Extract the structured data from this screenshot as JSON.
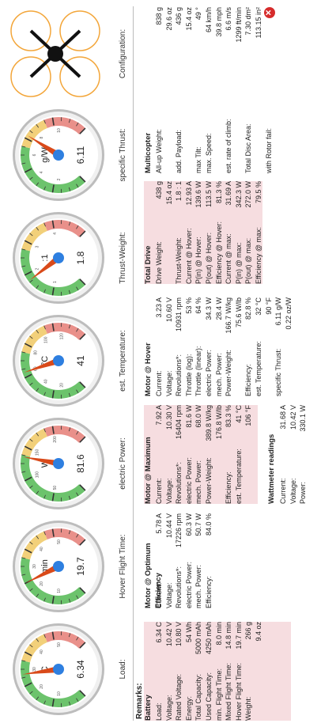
{
  "gauges": [
    {
      "unit": "C",
      "value": "6.34",
      "label": "Load:",
      "reading": 6.34,
      "needle_frac": 0.47,
      "scale": [
        "10",
        "20",
        "30",
        "40",
        "50"
      ]
    },
    {
      "unit": "min",
      "value": "19.7",
      "label": "Hover Flight Time:",
      "reading": 19.7,
      "needle_frac": 0.4,
      "scale": [
        "10",
        "20",
        "30",
        "40",
        "50"
      ]
    },
    {
      "unit": "W",
      "value": "81.6",
      "label": "electric Power:",
      "reading": 81.6,
      "needle_frac": 0.54,
      "scale": [
        "50",
        "100",
        "150",
        "200"
      ]
    },
    {
      "unit": "°C",
      "value": "41",
      "label": "est. Temperature:",
      "reading": 41,
      "needle_frac": 0.43,
      "scale": [
        "20",
        "40",
        "60",
        "80",
        "100",
        "120"
      ]
    },
    {
      "unit": ":1",
      "value": "1.8",
      "label": "Thrust-Weight:",
      "reading": 1.8,
      "needle_frac": 0.36,
      "scale": [
        "1",
        "2",
        "3",
        "4"
      ]
    },
    {
      "unit": "g/W",
      "value": "6.11",
      "label": "specific Thrust:",
      "reading": 6.11,
      "needle_frac": 0.62,
      "scale": [
        "2",
        "4",
        "6",
        "8",
        "10"
      ]
    }
  ],
  "configuration": {
    "label": "Configuration:"
  },
  "remarks": "Remarks:",
  "battery": {
    "title": "Battery",
    "rows": [
      {
        "k": "Load:",
        "v": "6.34 C"
      },
      {
        "k": "Voltage:",
        "v": "10.42 V"
      },
      {
        "k": "Rated Voltage:",
        "v": "10.80 V"
      },
      {
        "k": "Energy:",
        "v": "54 Wh"
      },
      {
        "k": "Total Capacity:",
        "v": "5000 mAh"
      },
      {
        "k": "Used Capacity:",
        "v": "4250 mAh"
      },
      {
        "k": "min. Flight Time:",
        "v": "8.0 min"
      },
      {
        "k": "Mixed Flight Time:",
        "v": "14.8 min"
      },
      {
        "k": "Hover Flight Time:",
        "v": "19.7 min"
      },
      {
        "k": "Weight:",
        "v": "266 g"
      },
      {
        "k": "",
        "v": "9.4 oz"
      }
    ]
  },
  "motor_opt": {
    "title": "Motor @ Optimum Efficiency",
    "rows": [
      {
        "k": "Current:",
        "v": "5.78 A"
      },
      {
        "k": "Voltage:",
        "v": "10.44 V"
      },
      {
        "k": "Revolutions*:",
        "v": "17226 rpm"
      },
      {
        "k": "electric Power:",
        "v": "60.3 W"
      },
      {
        "k": "mech. Power:",
        "v": "50.7 W"
      },
      {
        "k": "Efficiency:",
        "v": "84.0 %"
      }
    ]
  },
  "motor_max": {
    "title": "Motor @ Maximum",
    "rows": [
      {
        "k": "Current:",
        "v": "7.92 A"
      },
      {
        "k": "Voltage:",
        "v": "10.30 V"
      },
      {
        "k": "Revolutions*:",
        "v": "16404 rpm"
      },
      {
        "k": "electric Power:",
        "v": "81.6 W"
      },
      {
        "k": "mech. Power:",
        "v": "68.0 W"
      },
      {
        "k": "Power-Weight:",
        "v": "389.8 W/kg"
      },
      {
        "k": "",
        "v": "176.8 W/lb"
      },
      {
        "k": "Efficiency:",
        "v": "83.3 %"
      },
      {
        "k": "est. Temperature:",
        "v": "41 °C"
      },
      {
        "k": "",
        "v": "106 °F"
      }
    ]
  },
  "wattmeter": {
    "title": "Wattmeter readings",
    "rows": [
      {
        "k": "Current:",
        "v": "31.68 A"
      },
      {
        "k": "Voltage:",
        "v": "10.42 V"
      },
      {
        "k": "Power:",
        "v": "330.1 W"
      }
    ]
  },
  "motor_hover": {
    "title": "Motor @ Hover",
    "rows": [
      {
        "k": "Current:",
        "v": "3.23 A"
      },
      {
        "k": "Voltage:",
        "v": "10.60 V"
      },
      {
        "k": "Revolutions*:",
        "v": "10931 rpm"
      },
      {
        "k": "Throttle (log):",
        "v": "53 %"
      },
      {
        "k": "Throttle (linear):",
        "v": "64 %"
      },
      {
        "k": "electric Power:",
        "v": "34.3 W"
      },
      {
        "k": "mech. Power:",
        "v": "28.4 W"
      },
      {
        "k": "Power-Weight:",
        "v": "166.7 W/kg"
      },
      {
        "k": "",
        "v": "75.6 W/lb"
      },
      {
        "k": "Efficiency:",
        "v": "82.8 %"
      },
      {
        "k": "est. Temperature:",
        "v": "32 °C"
      },
      {
        "k": "",
        "v": "90 °F"
      },
      {
        "k": "specific Thrust:",
        "v": "6.11 g/W"
      },
      {
        "k": "",
        "v": "0.22 oz/W"
      }
    ]
  },
  "total_drive": {
    "title": "Total Drive",
    "rows": [
      {
        "k": "Drive Weight:",
        "v": "438 g"
      },
      {
        "k": "",
        "v": "15.4 oz"
      },
      {
        "k": "Thrust-Weight:",
        "v": "1.8 : 1"
      },
      {
        "k": "Current @ Hover:",
        "v": "12.93 A"
      },
      {
        "k": "P(in) @ Hover:",
        "v": "139.6 W"
      },
      {
        "k": "P(out) @ Hover:",
        "v": "113.5 W"
      },
      {
        "k": "Efficiency @ Hover:",
        "v": "81.3 %"
      },
      {
        "k": "Current @ max:",
        "v": "31.69 A"
      },
      {
        "k": "P(in) @ max:",
        "v": "342.3 W"
      },
      {
        "k": "P(out) @ max:",
        "v": "272.0 W"
      },
      {
        "k": "Efficiency @ max:",
        "v": "79.5 %"
      }
    ]
  },
  "multicopter": {
    "title": "Multicopter",
    "rows": [
      {
        "k": "All-up Weight:",
        "v": "838 g"
      },
      {
        "k": "",
        "v": "29.6 oz"
      },
      {
        "k": "add. Payload:",
        "v": "436 g"
      },
      {
        "k": "",
        "v": "15.4 oz"
      },
      {
        "k": "max Tilt:",
        "v": "49 °"
      },
      {
        "k": "max. Speed:",
        "v": "64 km/h"
      },
      {
        "k": "",
        "v": "39.8 mph"
      },
      {
        "k": "est. rate of climb:",
        "v": "6.6 m/s"
      },
      {
        "k": "",
        "v": "1299 ft/min"
      },
      {
        "k": "Total Disc Area:",
        "v": "7.30 dm²"
      },
      {
        "k": "",
        "v": "113.15 in²"
      },
      {
        "k": "with Rotor fail:",
        "v": ""
      }
    ]
  },
  "colors": {
    "green": "#6cc36c",
    "yellow": "#f2d07a",
    "red": "#e9908a",
    "needle": "#d94a1a",
    "hub": "#2e7fe0",
    "panel": "#f6dde0",
    "rotor": "#f3a63a",
    "icon_red": "#d62b2b"
  }
}
